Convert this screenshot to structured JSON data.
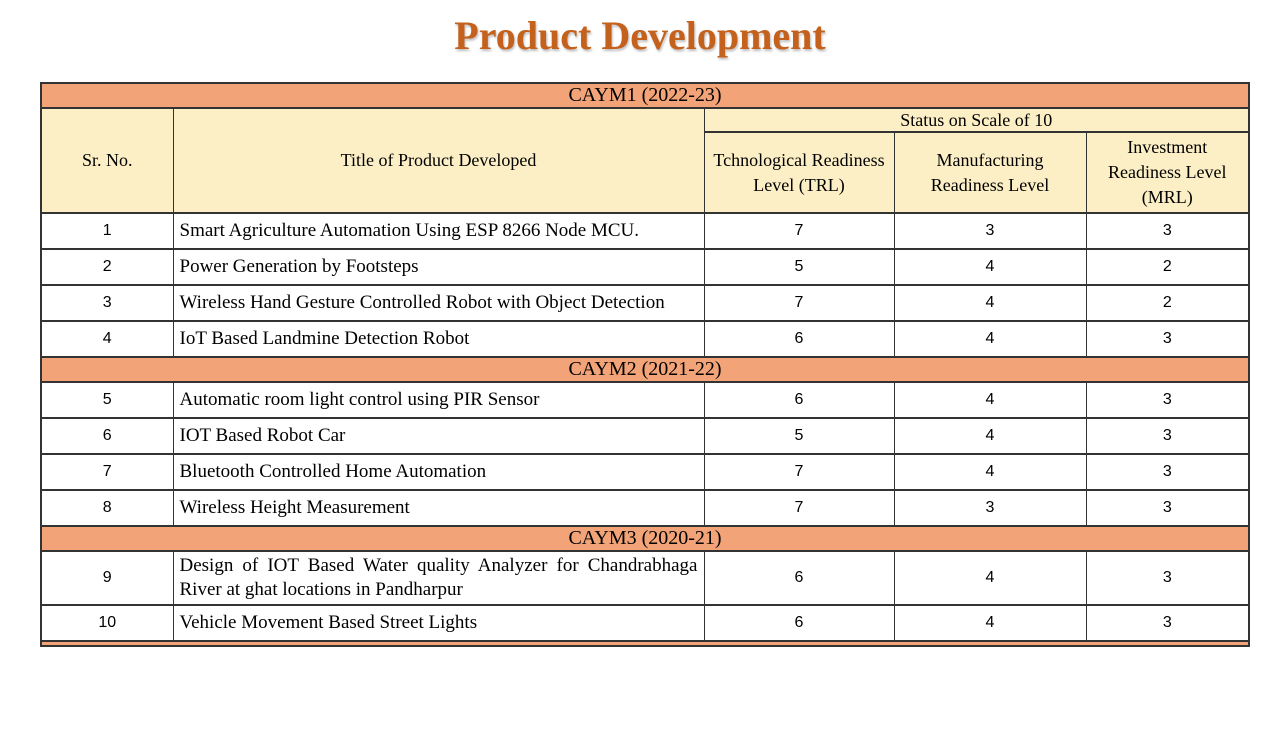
{
  "page_title": "Product Development",
  "colors": {
    "title": "#C4611C",
    "section_bg": "#F2A478",
    "header_bg": "#FCEFC5",
    "border": "#333333"
  },
  "table": {
    "header": {
      "sr_no": "Sr. No.",
      "product_title": "Title of Product Developed",
      "status": "Status on Scale of 10",
      "status_columns": [
        "Tchnological Readiness Level (TRL)",
        "Manufacturing Readiness Level",
        "Investment Readiness Level (MRL)"
      ]
    },
    "sections": [
      {
        "label": "CAYM1 (2022-23)",
        "rows": [
          {
            "sr": "1",
            "title": "Smart Agriculture Automation Using ESP 8266 Node MCU.",
            "trl": "7",
            "mrl": "3",
            "irl": "3"
          },
          {
            "sr": "2",
            "title": "Power Generation by Footsteps",
            "trl": "5",
            "mrl": "4",
            "irl": "2"
          },
          {
            "sr": "3",
            "title": "Wireless Hand Gesture Controlled Robot with Object Detection",
            "trl": "7",
            "mrl": "4",
            "irl": "2"
          },
          {
            "sr": "4",
            "title": "IoT Based Landmine Detection Robot",
            "trl": "6",
            "mrl": "4",
            "irl": "3"
          }
        ]
      },
      {
        "label": "CAYM2 (2021-22)",
        "rows": [
          {
            "sr": "5",
            "title": "Automatic room light control using PIR Sensor",
            "trl": "6",
            "mrl": "4",
            "irl": "3"
          },
          {
            "sr": "6",
            "title": "IOT Based Robot Car",
            "trl": "5",
            "mrl": "4",
            "irl": "3"
          },
          {
            "sr": "7",
            "title": "Bluetooth Controlled Home Automation",
            "trl": "7",
            "mrl": "4",
            "irl": "3"
          },
          {
            "sr": "8",
            "title": "Wireless Height Measurement",
            "trl": "7",
            "mrl": "3",
            "irl": "3"
          }
        ]
      },
      {
        "label": "CAYM3 (2020-21)",
        "rows": [
          {
            "sr": "9",
            "title": "Design of IOT Based Water quality Analyzer for Chandrabhaga River at ghat locations in Pandharpur",
            "trl": "6",
            "mrl": "4",
            "irl": "3"
          },
          {
            "sr": "10",
            "title": "Vehicle Movement Based Street Lights",
            "trl": "6",
            "mrl": "4",
            "irl": "3"
          }
        ]
      }
    ]
  }
}
